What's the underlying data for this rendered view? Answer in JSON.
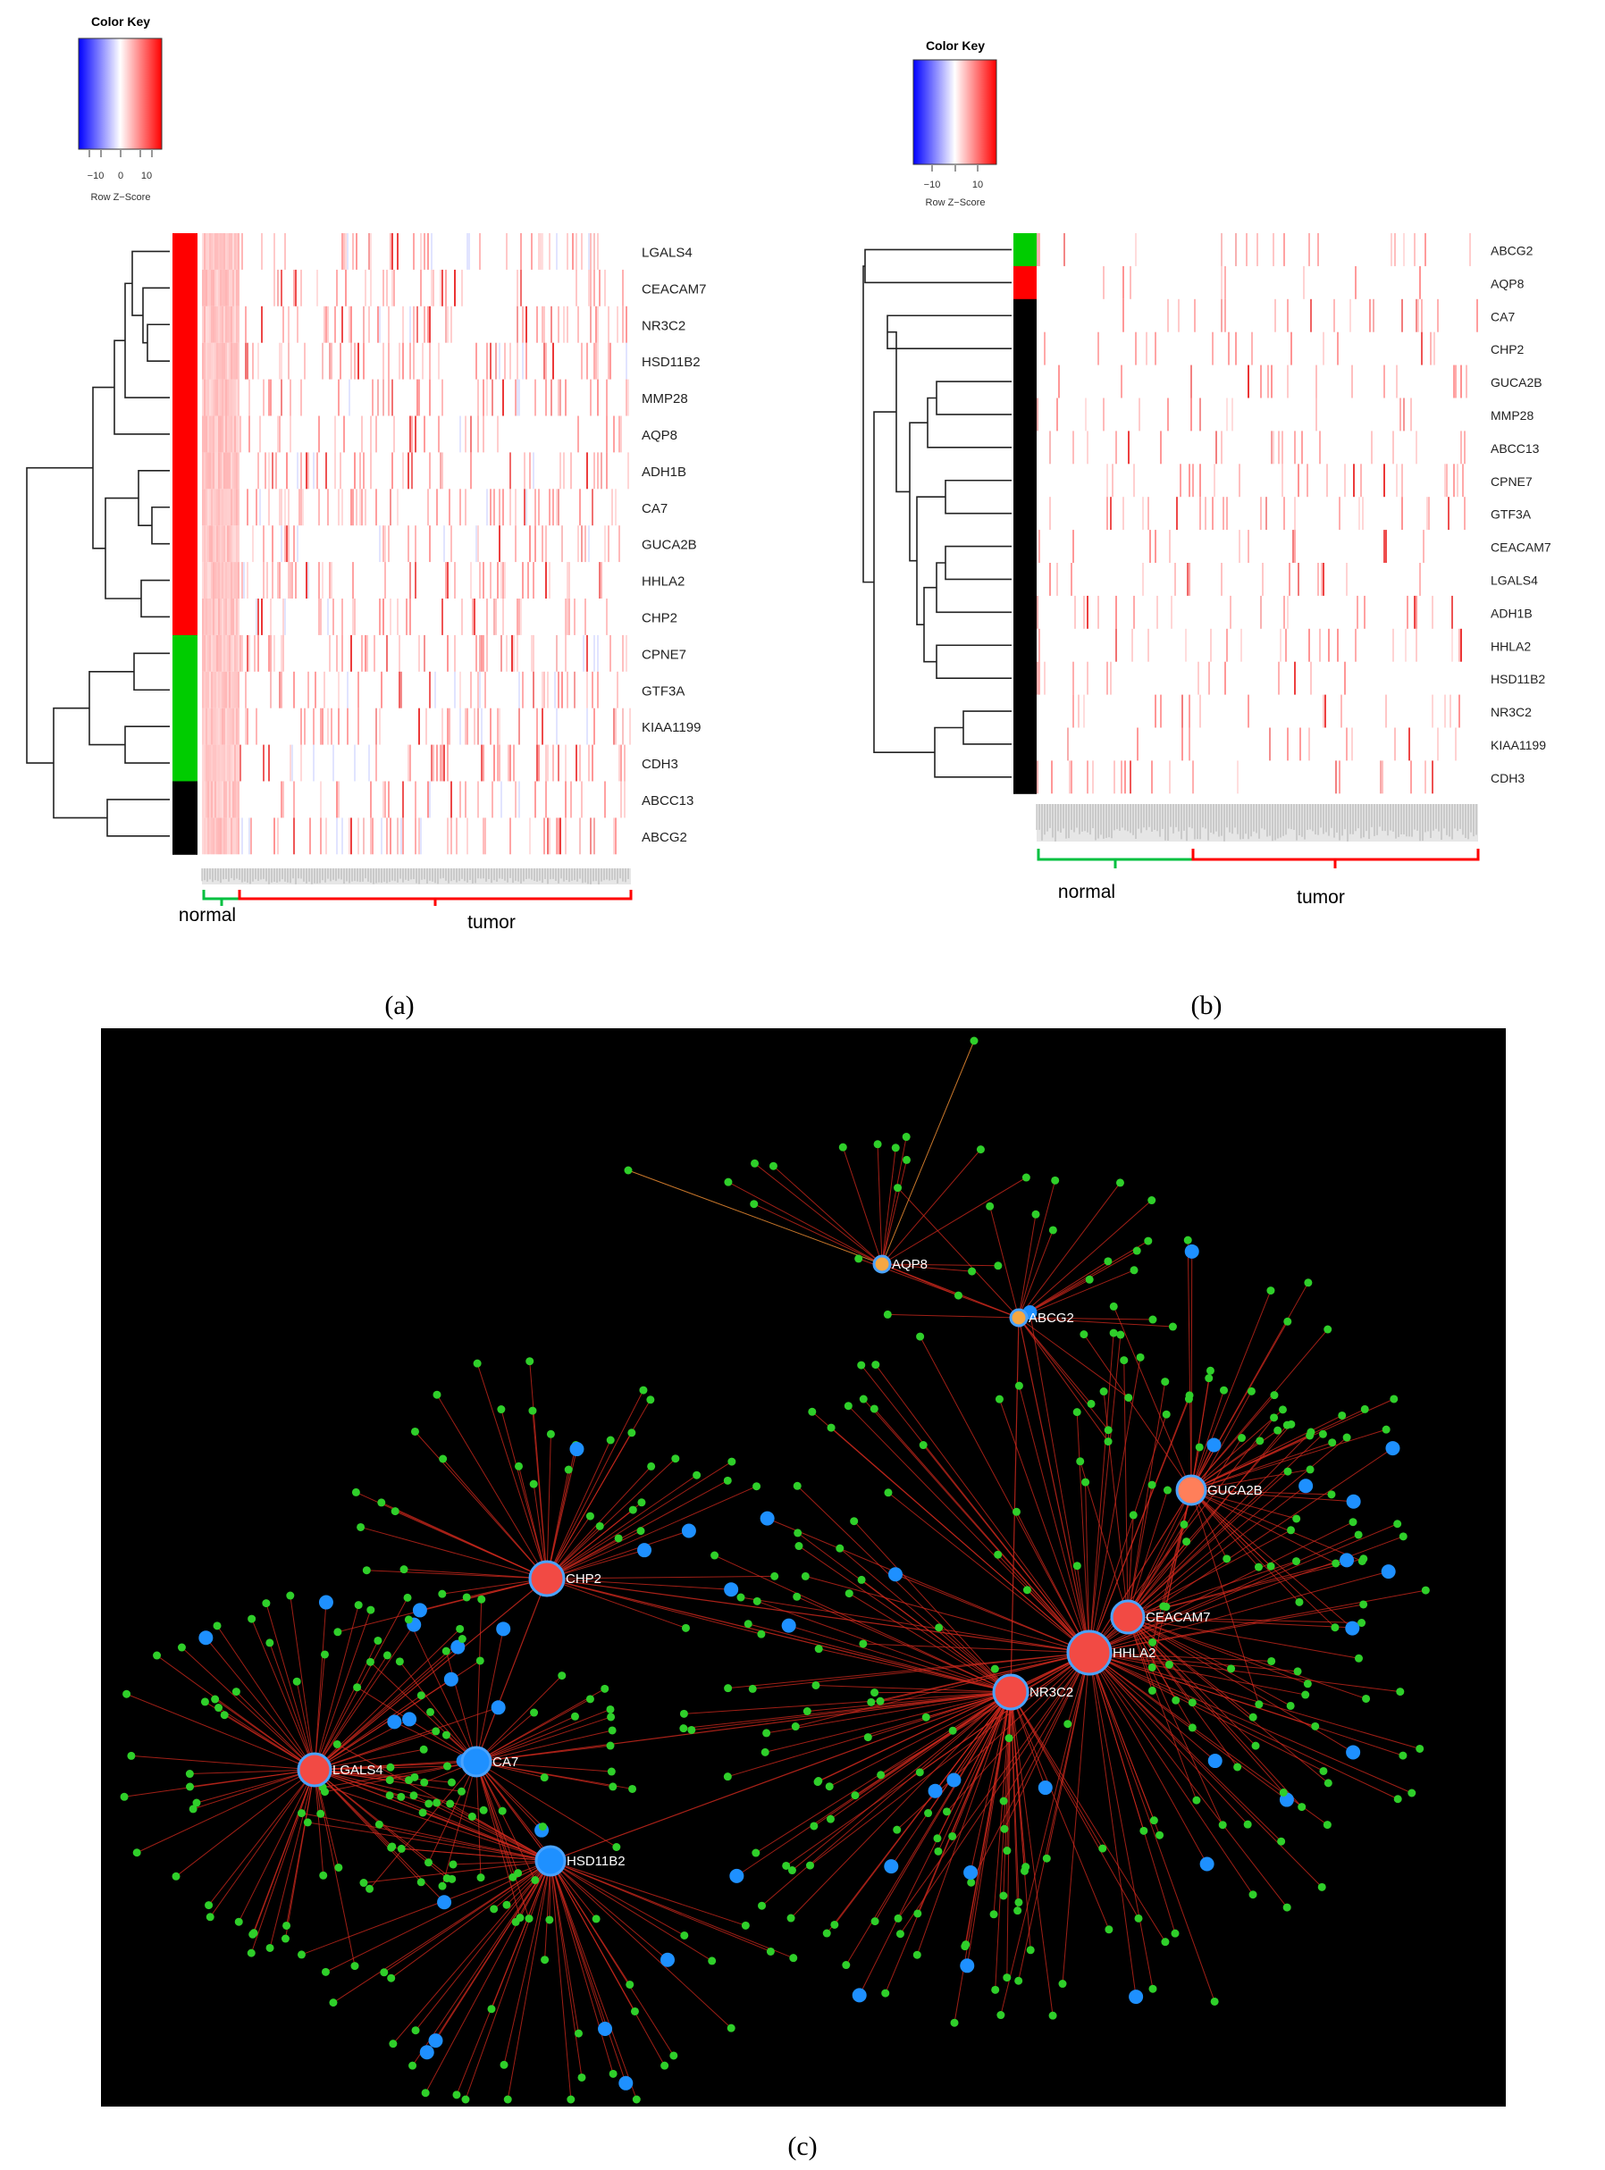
{
  "panel_a": {
    "color_key": {
      "title": "Color Key",
      "ticks": [
        "−10",
        "0",
        "10"
      ],
      "axis_label": "Row Z−Score"
    },
    "genes": [
      "LGALS4",
      "CEACAM7",
      "NR3C2",
      "HSD11B2",
      "MMP28",
      "AQP8",
      "ADH1B",
      "CA7",
      "GUCA2B",
      "HHLA2",
      "CHP2",
      "CPNE7",
      "GTF3A",
      "KIAA1199",
      "CDH3",
      "ABCC13",
      "ABCG2"
    ],
    "row_groups": [
      "red",
      "red",
      "red",
      "red",
      "red",
      "red",
      "red",
      "red",
      "red",
      "red",
      "red",
      "green",
      "green",
      "green",
      "green",
      "black",
      "black"
    ],
    "normal_label": "normal",
    "tumor_label": "tumor",
    "caption": "(a)"
  },
  "panel_b": {
    "color_key": {
      "title": "Color Key",
      "ticks": [
        "−10",
        "10"
      ],
      "axis_label": "Row Z−Score"
    },
    "genes": [
      "ABCG2",
      "AQP8",
      "CA7",
      "CHP2",
      "GUCA2B",
      "MMP28",
      "ABCC13",
      "CPNE7",
      "GTF3A",
      "CEACAM7",
      "LGALS4",
      "ADH1B",
      "HHLA2",
      "HSD11B2",
      "NR3C2",
      "KIAA1199",
      "CDH3"
    ],
    "row_groups": [
      "green",
      "red",
      "black",
      "black",
      "black",
      "black",
      "black",
      "black",
      "black",
      "black",
      "black",
      "black",
      "black",
      "black",
      "black",
      "black",
      "black"
    ],
    "normal_label": "normal",
    "tumor_label": "tumor",
    "caption": "(b)"
  },
  "panel_c": {
    "caption": "(c)",
    "hubs": [
      {
        "label": "AQP8",
        "kind": "orange-small"
      },
      {
        "label": "ABCG2",
        "kind": "orange-small"
      },
      {
        "label": "GUCA2B",
        "kind": "coral"
      },
      {
        "label": "CHP2",
        "kind": "red"
      },
      {
        "label": "CEACAM7",
        "kind": "red"
      },
      {
        "label": "HHLA2",
        "kind": "red"
      },
      {
        "label": "NR3C2",
        "kind": "red"
      },
      {
        "label": "LGALS4",
        "kind": "red"
      },
      {
        "label": "CA7",
        "kind": "blue"
      },
      {
        "label": "HSD11B2",
        "kind": "blue"
      }
    ]
  },
  "colors": {
    "group_red": "#ff0000",
    "group_green": "#00cc00",
    "group_black": "#000000",
    "network_bg": "#000000",
    "edge": "#d42a1e",
    "edge_orange": "#c8762a",
    "node_green": "#2fcf2a",
    "node_blue": "#1e90ff",
    "hub_red": "#f24a44",
    "hub_coral": "#ff7f5a",
    "hub_orange": "#f5a742"
  }
}
